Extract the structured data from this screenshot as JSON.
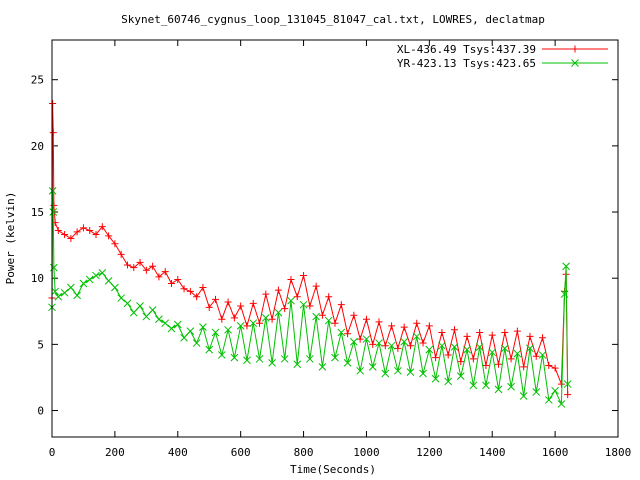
{
  "chart_data": {
    "type": "line",
    "title": "Skynet_60746_cygnus_loop_131045_81047_cal.txt, LOWRES, declatmap",
    "xlabel": "Time(Seconds)",
    "ylabel": "Power (kelvin)",
    "xlim": [
      0,
      1800
    ],
    "ylim": [
      -2,
      28
    ],
    "xticks": [
      0,
      200,
      400,
      600,
      800,
      1000,
      1200,
      1400,
      1600,
      1800
    ],
    "yticks": [
      0,
      5,
      10,
      15,
      20,
      25
    ],
    "xtick_labels": [
      "0",
      "200",
      "400",
      "600",
      "800",
      "1000",
      "1200",
      "1400",
      "1600",
      "1800"
    ],
    "ytick_labels": [
      "0",
      "5",
      "10",
      "15",
      "20",
      "25"
    ],
    "legend_position": "top-right",
    "series": [
      {
        "name": "XL-436.49 Tsys:437.39",
        "color": "#ff0000",
        "marker": "plus",
        "x": [
          0,
          2,
          4,
          6,
          10,
          20,
          40,
          60,
          80,
          100,
          120,
          140,
          160,
          180,
          200,
          220,
          240,
          260,
          280,
          300,
          320,
          340,
          360,
          380,
          400,
          420,
          440,
          460,
          480,
          500,
          520,
          540,
          560,
          580,
          600,
          620,
          640,
          660,
          680,
          700,
          720,
          740,
          760,
          780,
          800,
          820,
          840,
          860,
          880,
          900,
          920,
          940,
          960,
          980,
          1000,
          1020,
          1040,
          1060,
          1080,
          1100,
          1120,
          1140,
          1160,
          1180,
          1200,
          1220,
          1240,
          1260,
          1280,
          1300,
          1320,
          1340,
          1360,
          1380,
          1400,
          1420,
          1440,
          1460,
          1480,
          1500,
          1520,
          1540,
          1560,
          1580,
          1600,
          1620,
          1630,
          1635,
          1640
        ],
        "y": [
          8.5,
          23.2,
          21.0,
          15.5,
          14.2,
          13.6,
          13.3,
          13.0,
          13.5,
          13.8,
          13.6,
          13.3,
          13.9,
          13.2,
          12.6,
          11.8,
          11.0,
          10.8,
          11.2,
          10.6,
          10.9,
          10.1,
          10.5,
          9.6,
          9.9,
          9.2,
          9.0,
          8.6,
          9.3,
          7.8,
          8.4,
          6.9,
          8.2,
          7.0,
          7.9,
          6.4,
          8.1,
          6.6,
          8.8,
          6.9,
          9.1,
          7.7,
          9.9,
          8.6,
          10.2,
          7.9,
          9.4,
          7.2,
          8.6,
          6.6,
          8.0,
          5.8,
          7.2,
          5.4,
          6.9,
          5.0,
          6.7,
          4.9,
          6.4,
          4.7,
          6.3,
          4.9,
          6.6,
          5.1,
          6.4,
          4.0,
          5.9,
          4.2,
          6.1,
          3.7,
          5.6,
          3.9,
          5.9,
          3.4,
          5.7,
          3.5,
          5.9,
          3.9,
          6.0,
          3.3,
          5.6,
          4.1,
          5.5,
          3.4,
          3.2,
          2.0,
          9.0,
          10.3,
          1.2
        ]
      },
      {
        "name": "YR-423.13 Tsys:423.65",
        "color": "#00c000",
        "marker": "cross",
        "x": [
          0,
          2,
          4,
          6,
          10,
          20,
          40,
          60,
          80,
          100,
          120,
          140,
          160,
          180,
          200,
          220,
          240,
          260,
          280,
          300,
          320,
          340,
          360,
          380,
          400,
          420,
          440,
          460,
          480,
          500,
          520,
          540,
          560,
          580,
          600,
          620,
          640,
          660,
          680,
          700,
          720,
          740,
          760,
          780,
          800,
          820,
          840,
          860,
          880,
          900,
          920,
          940,
          960,
          980,
          1000,
          1020,
          1040,
          1060,
          1080,
          1100,
          1120,
          1140,
          1160,
          1180,
          1200,
          1220,
          1240,
          1260,
          1280,
          1300,
          1320,
          1340,
          1360,
          1380,
          1400,
          1420,
          1440,
          1460,
          1480,
          1500,
          1520,
          1540,
          1560,
          1580,
          1600,
          1620,
          1630,
          1635,
          1640
        ],
        "y": [
          7.8,
          16.6,
          15.0,
          10.8,
          9.0,
          8.6,
          8.9,
          9.3,
          8.7,
          9.6,
          9.9,
          10.2,
          10.4,
          9.8,
          9.3,
          8.5,
          8.1,
          7.4,
          7.9,
          7.1,
          7.6,
          6.9,
          6.6,
          6.2,
          6.5,
          5.5,
          6.0,
          5.1,
          6.3,
          4.6,
          5.9,
          4.2,
          6.1,
          4.0,
          6.4,
          3.8,
          6.6,
          3.9,
          7.0,
          3.6,
          7.4,
          3.9,
          8.3,
          3.5,
          8.0,
          3.9,
          7.1,
          3.3,
          6.8,
          4.0,
          5.9,
          3.6,
          5.2,
          3.0,
          5.4,
          3.3,
          5.1,
          2.8,
          4.9,
          3.0,
          5.2,
          2.9,
          5.6,
          2.8,
          4.6,
          2.4,
          4.9,
          2.2,
          4.8,
          2.6,
          4.6,
          1.9,
          4.8,
          1.9,
          4.4,
          1.6,
          4.7,
          1.8,
          4.3,
          1.1,
          4.7,
          1.4,
          4.2,
          0.8,
          1.5,
          0.5,
          8.8,
          10.9,
          2.0
        ]
      }
    ]
  }
}
